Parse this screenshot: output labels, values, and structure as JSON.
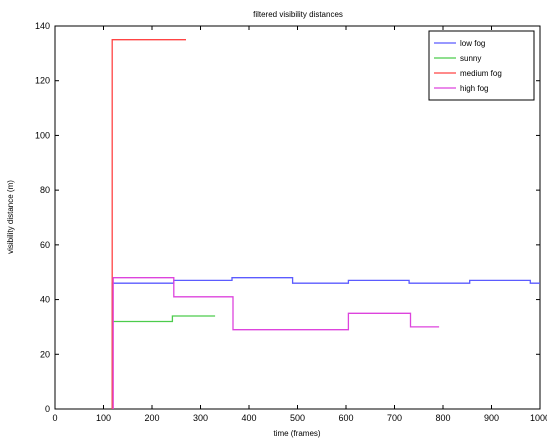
{
  "chart_data": {
    "type": "line",
    "title": "filtered visibility distances",
    "xlabel": "time (frames)",
    "ylabel": "visibility distance (m)",
    "xlim": [
      0,
      1000
    ],
    "ylim": [
      0,
      140
    ],
    "xticks": [
      0,
      100,
      200,
      300,
      400,
      500,
      600,
      700,
      800,
      900,
      1000
    ],
    "yticks": [
      0,
      20,
      40,
      60,
      80,
      100,
      120,
      140
    ],
    "grid": false,
    "legend_position": "top-right",
    "series": [
      {
        "name": "low fog",
        "color": "#5b5bff",
        "points": [
          [
            118,
            0
          ],
          [
            118,
            46
          ],
          [
            245,
            46
          ],
          [
            245,
            47
          ],
          [
            365,
            47
          ],
          [
            365,
            48
          ],
          [
            490,
            48
          ],
          [
            490,
            46
          ],
          [
            605,
            46
          ],
          [
            605,
            47
          ],
          [
            730,
            47
          ],
          [
            730,
            46
          ],
          [
            855,
            46
          ],
          [
            855,
            47
          ],
          [
            980,
            47
          ],
          [
            980,
            46
          ],
          [
            1000,
            46
          ]
        ]
      },
      {
        "name": "sunny",
        "color": "#4ccc4c",
        "points": [
          [
            118,
            0
          ],
          [
            118,
            32
          ],
          [
            242,
            32
          ],
          [
            242,
            34
          ],
          [
            330,
            34
          ]
        ]
      },
      {
        "name": "medium fog",
        "color": "#ff4444",
        "points": [
          [
            118,
            0
          ],
          [
            118,
            135
          ],
          [
            270,
            135
          ]
        ]
      },
      {
        "name": "high fog",
        "color": "#dd44dd",
        "points": [
          [
            120,
            0
          ],
          [
            120,
            48
          ],
          [
            245,
            48
          ],
          [
            245,
            41
          ],
          [
            367,
            41
          ],
          [
            367,
            29
          ],
          [
            605,
            29
          ],
          [
            605,
            35
          ],
          [
            733,
            35
          ],
          [
            733,
            30
          ],
          [
            792,
            30
          ]
        ]
      }
    ]
  }
}
